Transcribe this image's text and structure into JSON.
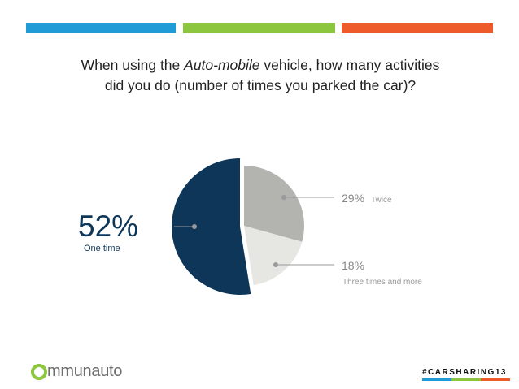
{
  "header_bars": [
    "#1f9bd7",
    "#8cc63e",
    "#ef5a2a"
  ],
  "question": {
    "part1": "When using the ",
    "italic": "Auto-mobile",
    "part2": " vehicle, how many activities",
    "line2": "did you do (number of times you parked the car)?"
  },
  "chart_data": {
    "type": "pie",
    "slices": [
      {
        "label": "One time",
        "value": 52,
        "display": "52%",
        "color": "#0e3658"
      },
      {
        "label": "Twice",
        "value": 29,
        "display": "29%",
        "color": "#b3b3b0"
      },
      {
        "label": "Three times and more",
        "value": 18,
        "display": "18%",
        "color": "#e6e6e3"
      }
    ]
  },
  "footer": {
    "logo_text": "mmunauto",
    "hashtag": "#CARSHARING13"
  }
}
